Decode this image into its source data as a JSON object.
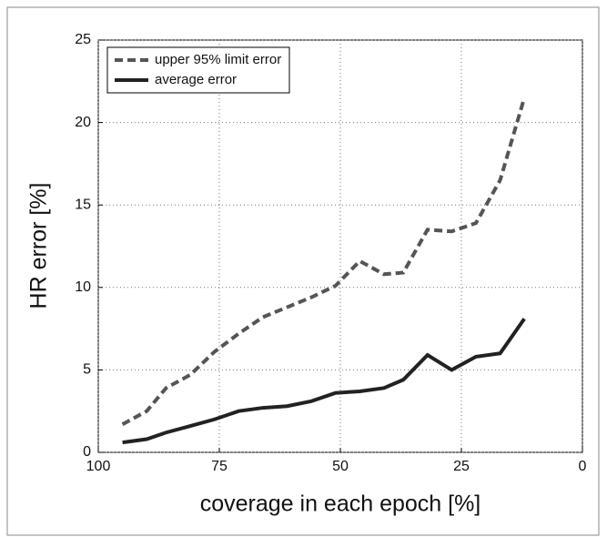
{
  "chart_data": {
    "type": "line",
    "x_label": "coverage in each epoch [%]",
    "y_label": "HR error [%]",
    "x": [
      95,
      90,
      86,
      81,
      76,
      71,
      66,
      61,
      56,
      51,
      46,
      41,
      37,
      32,
      27,
      22,
      17,
      12
    ],
    "series": [
      {
        "name": "upper 95% limit error",
        "color": "#555555",
        "dash": true,
        "values": [
          1.7,
          2.5,
          3.9,
          4.7,
          6.1,
          7.2,
          8.2,
          8.8,
          9.4,
          10.1,
          11.6,
          10.8,
          10.9,
          13.5,
          13.4,
          13.9,
          16.5,
          21.5
        ]
      },
      {
        "name": "average error",
        "color": "#222222",
        "dash": false,
        "values": [
          0.6,
          0.8,
          1.2,
          1.6,
          2.0,
          2.5,
          2.7,
          2.8,
          3.1,
          3.6,
          3.7,
          3.9,
          4.4,
          5.9,
          5.0,
          5.8,
          6.0,
          8.1
        ]
      }
    ],
    "xlim": [
      100,
      0
    ],
    "xticks": [
      100,
      75,
      50,
      25,
      0
    ],
    "ylim": [
      0,
      25
    ],
    "yticks": [
      0,
      5,
      10,
      15,
      20,
      25
    ],
    "grid": true,
    "legend": "upper-left"
  }
}
